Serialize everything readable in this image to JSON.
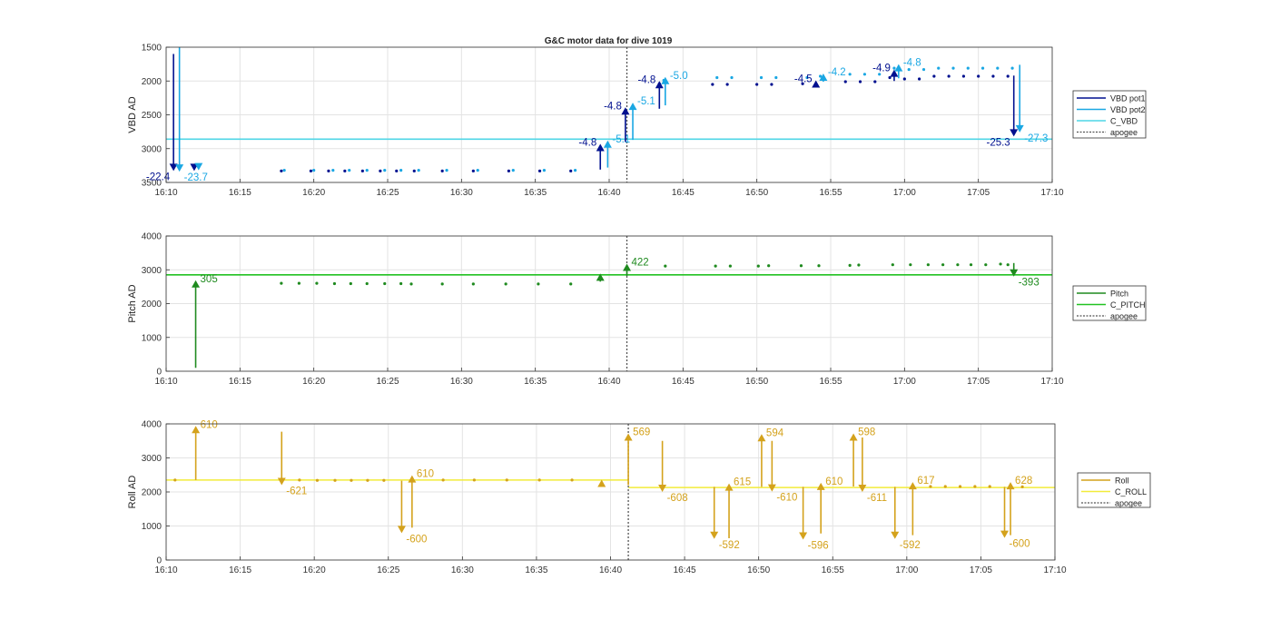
{
  "figure_title": "G&C motor data for dive 1019",
  "colors": {
    "vbd_pot1": "#00108f",
    "vbd_pot2": "#1aa7e3",
    "c_vbd": "#4fd6e6",
    "pitch": "#1f8a1f",
    "c_pitch": "#22c222",
    "roll": "#d4a21c",
    "c_roll": "#f2ec3a",
    "apogee": "#555555"
  },
  "chart_data": [
    {
      "type": "scatter",
      "title": "G&C motor data for dive 1019",
      "ylabel": "VBD AD",
      "xlabel": "",
      "xlim": [
        "16:10",
        "17:10"
      ],
      "ylim": [
        1500,
        3500
      ],
      "y_reversed": true,
      "xticks": [
        "16:10",
        "16:15",
        "16:20",
        "16:25",
        "16:30",
        "16:35",
        "16:40",
        "16:45",
        "16:50",
        "16:55",
        "17:00",
        "17:05",
        "17:10"
      ],
      "yticks": [
        "1500",
        "2000",
        "2500",
        "3000",
        "3500"
      ],
      "grid": true,
      "legend_placement": "right",
      "legend": [
        "VBD pot1",
        "VBD pot2",
        "C_VBD",
        "apogee"
      ],
      "apogee": "16:41.2",
      "reference_line": {
        "name": "C_VBD",
        "y": 2860
      },
      "series": [
        {
          "name": "VBD pot1",
          "x": [
            "16:17.8",
            "16:19.8",
            "16:21.0",
            "16:22.1",
            "16:23.3",
            "16:24.5",
            "16:25.6",
            "16:26.8",
            "16:28.7",
            "16:30.8",
            "16:33.2",
            "16:35.3",
            "16:37.4",
            "16:43.4",
            "16:47.0",
            "16:48.0",
            "16:50.0",
            "16:51.0",
            "16:53.1",
            "16:54.0",
            "16:56.0",
            "16:57.0",
            "16:58.0",
            "16:59.0",
            "17:00.0",
            "17:01.0",
            "17:02.0",
            "17:03.0",
            "17:04.0",
            "17:05.0",
            "17:06.0",
            "17:07.0"
          ],
          "values": [
            3330,
            3330,
            3330,
            3330,
            3330,
            3330,
            3330,
            3330,
            3330,
            3330,
            3330,
            3330,
            3330,
            2040,
            2050,
            2050,
            2050,
            2050,
            2040,
            2040,
            2010,
            2010,
            2010,
            1950,
            1970,
            1970,
            1930,
            1930,
            1930,
            1930,
            1930,
            1930
          ]
        },
        {
          "name": "VBD pot2",
          "x": [
            "16:18.0",
            "16:20.0",
            "16:21.3",
            "16:22.4",
            "16:23.6",
            "16:24.8",
            "16:25.9",
            "16:27.1",
            "16:29.0",
            "16:31.1",
            "16:33.5",
            "16:35.6",
            "16:37.7",
            "16:43.7",
            "16:47.3",
            "16:48.3",
            "16:50.3",
            "16:51.3",
            "16:53.4",
            "16:54.3",
            "16:56.3",
            "16:57.3",
            "16:58.3",
            "16:59.3",
            "17:00.3",
            "17:01.3",
            "17:02.3",
            "17:03.3",
            "17:04.3",
            "17:05.3",
            "17:06.3",
            "17:07.3"
          ],
          "values": [
            3320,
            3320,
            3320,
            3320,
            3320,
            3320,
            3320,
            3320,
            3320,
            3320,
            3320,
            3320,
            3320,
            1990,
            1950,
            1950,
            1950,
            1950,
            1950,
            1930,
            1900,
            1900,
            1900,
            1810,
            1830,
            1830,
            1810,
            1810,
            1810,
            1810,
            1810,
            1810
          ]
        }
      ],
      "arrows": [
        {
          "series": "VBD pot1",
          "x": "16:10.5",
          "from": 1600,
          "to": 3330,
          "label": "-22.4"
        },
        {
          "series": "VBD pot2",
          "x": "16:10.9",
          "from": 1500,
          "to": 3340,
          "label": "-23.7"
        },
        {
          "series": "VBD pot1",
          "x": "16:11.9",
          "from": 3280,
          "to": 3330,
          "label": ""
        },
        {
          "series": "VBD pot2",
          "x": "16:12.2",
          "from": 3280,
          "to": 3320,
          "label": ""
        },
        {
          "series": "VBD pot1",
          "x": "16:39.4",
          "from": 3310,
          "to": 2930,
          "label": "-4.8"
        },
        {
          "series": "VBD pot2",
          "x": "16:39.9",
          "from": 3280,
          "to": 2880,
          "label": "-5.1"
        },
        {
          "series": "VBD pot1",
          "x": "16:41.1",
          "from": 2900,
          "to": 2390,
          "label": "-4.8"
        },
        {
          "series": "VBD pot2",
          "x": "16:41.6",
          "from": 2870,
          "to": 2320,
          "label": "-5.1"
        },
        {
          "series": "VBD pot1",
          "x": "16:43.4",
          "from": 2410,
          "to": 2000,
          "label": "-4.8"
        },
        {
          "series": "VBD pot2",
          "x": "16:43.8",
          "from": 2360,
          "to": 1940,
          "label": "-5.0"
        },
        {
          "series": "VBD pot1",
          "x": "16:54.0",
          "from": 2040,
          "to": 1990,
          "label": "-4.5"
        },
        {
          "series": "VBD pot2",
          "x": "16:54.5",
          "from": 2010,
          "to": 1890,
          "label": "-4.2"
        },
        {
          "series": "VBD pot1",
          "x": "16:59.3",
          "from": 2000,
          "to": 1830,
          "label": "-4.9"
        },
        {
          "series": "VBD pot2",
          "x": "16:59.6",
          "from": 1960,
          "to": 1750,
          "label": "-4.8"
        },
        {
          "series": "VBD pot1",
          "x": "17:07.4",
          "from": 1920,
          "to": 2820,
          "label": "-25.3"
        },
        {
          "series": "VBD pot2",
          "x": "17:07.8",
          "from": 1760,
          "to": 2760,
          "label": "-27.3"
        }
      ]
    },
    {
      "type": "scatter",
      "title": "",
      "ylabel": "Pitch AD",
      "xlabel": "",
      "xlim": [
        "16:10",
        "17:10"
      ],
      "ylim": [
        0,
        4000
      ],
      "xticks": [
        "16:10",
        "16:15",
        "16:20",
        "16:25",
        "16:30",
        "16:35",
        "16:40",
        "16:45",
        "16:50",
        "16:55",
        "17:00",
        "17:05",
        "17:10"
      ],
      "yticks": [
        "0",
        "1000",
        "2000",
        "3000",
        "4000"
      ],
      "grid": true,
      "legend_placement": "right",
      "legend": [
        "Pitch",
        "C_PITCH",
        "apogee"
      ],
      "apogee": "16:41.2",
      "reference_line": {
        "name": "C_PITCH",
        "y": 2850
      },
      "series": [
        {
          "name": "Pitch",
          "x": [
            "16:17.8",
            "16:19.0",
            "16:20.2",
            "16:21.4",
            "16:22.5",
            "16:23.6",
            "16:24.8",
            "16:25.9",
            "16:26.6",
            "16:28.7",
            "16:30.8",
            "16:33.0",
            "16:35.2",
            "16:37.4",
            "16:43.8",
            "16:47.2",
            "16:48.2",
            "16:50.1",
            "16:50.8",
            "16:53.0",
            "16:54.2",
            "16:56.3",
            "16:56.9",
            "16:59.2",
            "17:00.4",
            "17:01.6",
            "17:02.6",
            "17:03.6",
            "17:04.5",
            "17:05.5",
            "17:06.5",
            "17:07.0"
          ],
          "values": [
            2600,
            2600,
            2600,
            2590,
            2590,
            2590,
            2590,
            2590,
            2580,
            2580,
            2580,
            2580,
            2580,
            2580,
            3110,
            3110,
            3110,
            3110,
            3120,
            3120,
            3120,
            3130,
            3140,
            3150,
            3150,
            3150,
            3150,
            3150,
            3150,
            3150,
            3170,
            3150
          ]
        }
      ],
      "arrows": [
        {
          "series": "Pitch",
          "x": "16:12.0",
          "from": 100,
          "to": 2690,
          "label": "305"
        },
        {
          "series": "Pitch",
          "x": "16:39.4",
          "from": 2650,
          "to": 2890,
          "label": ""
        },
        {
          "series": "Pitch",
          "x": "16:41.2",
          "from": 2820,
          "to": 3180,
          "label": "422"
        },
        {
          "series": "Pitch",
          "x": "17:07.4",
          "from": 3200,
          "to": 2800,
          "label": "-393"
        }
      ]
    },
    {
      "type": "scatter",
      "title": "",
      "ylabel": "Roll AD",
      "xlabel": "",
      "xlim": [
        "16:10",
        "17:10"
      ],
      "ylim": [
        0,
        4000
      ],
      "xticks": [
        "16:10",
        "16:15",
        "16:20",
        "16:25",
        "16:30",
        "16:35",
        "16:40",
        "16:45",
        "16:50",
        "16:55",
        "17:00",
        "17:05",
        "17:10"
      ],
      "yticks": [
        "0",
        "1000",
        "2000",
        "3000",
        "4000"
      ],
      "grid": true,
      "legend_placement": "right",
      "legend": [
        "Roll",
        "C_ROLL",
        "apogee"
      ],
      "apogee": "16:41.2",
      "reference_line_segments": [
        {
          "name": "C_ROLL",
          "x_from": "16:10",
          "x_to": "16:41.2",
          "y": 2350
        },
        {
          "name": "C_ROLL",
          "x_from": "16:41.2",
          "x_to": "17:10",
          "y": 2130
        }
      ],
      "series": [
        {
          "name": "Roll",
          "x": [
            "16:10.6",
            "16:19.0",
            "16:20.2",
            "16:21.4",
            "16:22.5",
            "16:23.6",
            "16:24.7",
            "16:28.7",
            "16:30.8",
            "16:33.0",
            "16:35.2",
            "16:37.4",
            "17:01.6",
            "17:02.6",
            "17:03.6",
            "17:04.6",
            "17:05.6",
            "17:07.8"
          ],
          "values": [
            2350,
            2350,
            2340,
            2340,
            2340,
            2340,
            2340,
            2350,
            2350,
            2350,
            2350,
            2350,
            2160,
            2160,
            2160,
            2160,
            2160,
            2150
          ]
        }
      ],
      "arrows": [
        {
          "series": "Roll",
          "x": "16:12.0",
          "from": 2350,
          "to": 3940,
          "label": "610"
        },
        {
          "series": "Roll",
          "x": "16:17.8",
          "from": 3770,
          "to": 2200,
          "label": "-621"
        },
        {
          "series": "Roll",
          "x": "16:25.9",
          "from": 2330,
          "to": 790,
          "label": "-600"
        },
        {
          "series": "Roll",
          "x": "16:26.6",
          "from": 950,
          "to": 2490,
          "label": "610"
        },
        {
          "series": "Roll",
          "x": "16:39.4",
          "from": 2260,
          "to": 2360,
          "label": ""
        },
        {
          "series": "Roll",
          "x": "16:41.2",
          "from": 2200,
          "to": 3720,
          "label": "569"
        },
        {
          "series": "Roll",
          "x": "16:43.5",
          "from": 3500,
          "to": 2000,
          "label": "-608"
        },
        {
          "series": "Roll",
          "x": "16:47.0",
          "from": 2150,
          "to": 620,
          "label": "-592"
        },
        {
          "series": "Roll",
          "x": "16:48.0",
          "from": 640,
          "to": 2250,
          "label": "615"
        },
        {
          "series": "Roll",
          "x": "16:50.2",
          "from": 2150,
          "to": 3700,
          "label": "594"
        },
        {
          "series": "Roll",
          "x": "16:50.9",
          "from": 3500,
          "to": 2010,
          "label": "-610"
        },
        {
          "series": "Roll",
          "x": "16:53.0",
          "from": 2150,
          "to": 600,
          "label": "-596"
        },
        {
          "series": "Roll",
          "x": "16:54.2",
          "from": 780,
          "to": 2270,
          "label": "610"
        },
        {
          "series": "Roll",
          "x": "16:56.4",
          "from": 2160,
          "to": 3720,
          "label": "598"
        },
        {
          "series": "Roll",
          "x": "16:57.0",
          "from": 3600,
          "to": 2000,
          "label": "-611"
        },
        {
          "series": "Roll",
          "x": "16:59.2",
          "from": 2150,
          "to": 620,
          "label": "-592"
        },
        {
          "series": "Roll",
          "x": "17:00.4",
          "from": 730,
          "to": 2290,
          "label": "617"
        },
        {
          "series": "Roll",
          "x": "17:06.6",
          "from": 2150,
          "to": 650,
          "label": "-600"
        },
        {
          "series": "Roll",
          "x": "17:07.0",
          "from": 730,
          "to": 2290,
          "label": "628"
        }
      ]
    }
  ]
}
